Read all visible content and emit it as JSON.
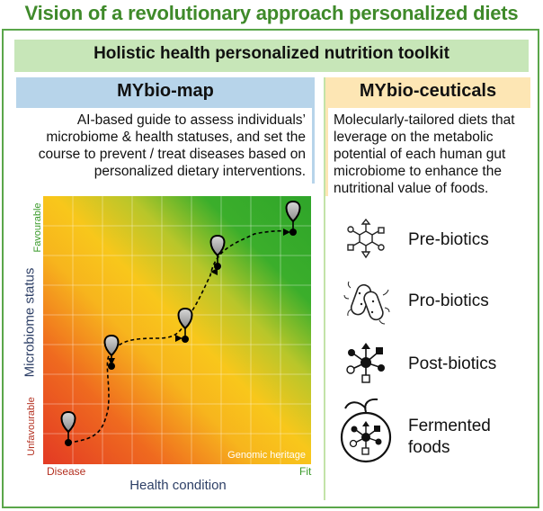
{
  "title": "Vision of a revolutionary approach personalized diets",
  "toolkit_title": "Holistic health personalized nutrition toolkit",
  "map": {
    "title": "MYbio-map",
    "description": "AI-based guide to assess individuals’ microbiome & health statuses, and set the course to prevent / treat diseases based on personalized dietary interventions.",
    "y_axis_label": "Microbiome status",
    "y_top": "Favourable",
    "y_bottom": "Unfavourable",
    "x_axis_label": "Health condition",
    "x_left": "Disease",
    "x_right": "Fit",
    "inset_label": "Genomic heritage"
  },
  "ceuticals": {
    "title": "MYbio-ceuticals",
    "description": "Molecularly-tailored diets that leverage on the metabolic potential of each human gut microbiome to enhance the nutritional value of foods.",
    "items": [
      {
        "label": "Pre-biotics",
        "icon": "prebiotics-molecule-icon"
      },
      {
        "label": "Pro-biotics",
        "icon": "probiotics-bacteria-icon"
      },
      {
        "label": "Post-biotics",
        "icon": "postbiotics-metabolite-icon"
      },
      {
        "label": "Fermented foods",
        "icon": "fermented-fruit-icon"
      }
    ]
  },
  "colors": {
    "title_green": "#3f8a2a",
    "frame_green": "#5aa64a",
    "toolkit_bar": "#c7e6b8",
    "map_header": "#b7d4ea",
    "ceuticals_header": "#fde6b4",
    "heatmap_red": "#e33a24",
    "heatmap_yellow": "#f7c21b",
    "heatmap_green": "#3bae2b"
  }
}
